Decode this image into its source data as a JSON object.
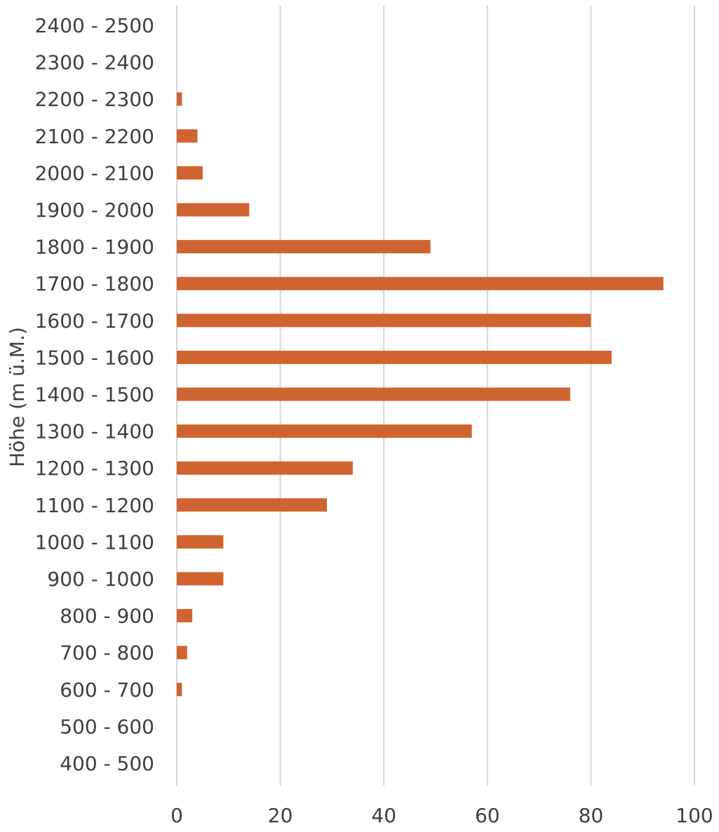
{
  "chart_data": {
    "type": "bar",
    "orientation": "horizontal",
    "title": "",
    "xlabel": "",
    "ylabel": "Höhe (m ü.M.)",
    "xlim": [
      0,
      100
    ],
    "xticks": [
      0,
      20,
      40,
      60,
      80,
      100
    ],
    "grid": true,
    "bar_color": "#d06430",
    "categories": [
      "2400 - 2500",
      "2300 - 2400",
      "2200 - 2300",
      "2100 - 2200",
      "2000 - 2100",
      "1900 - 2000",
      "1800 - 1900",
      "1700 - 1800",
      "1600 - 1700",
      "1500 - 1600",
      "1400 - 1500",
      "1300 - 1400",
      "1200 - 1300",
      "1100 - 1200",
      "1000 - 1100",
      "900 - 1000",
      "800 - 900",
      "700 - 800",
      "600 - 700",
      "500 - 600",
      "400 - 500"
    ],
    "values": [
      0,
      0,
      1,
      4,
      5,
      14,
      49,
      94,
      80,
      84,
      76,
      57,
      34,
      29,
      9,
      9,
      3,
      2,
      1,
      0,
      0
    ]
  }
}
